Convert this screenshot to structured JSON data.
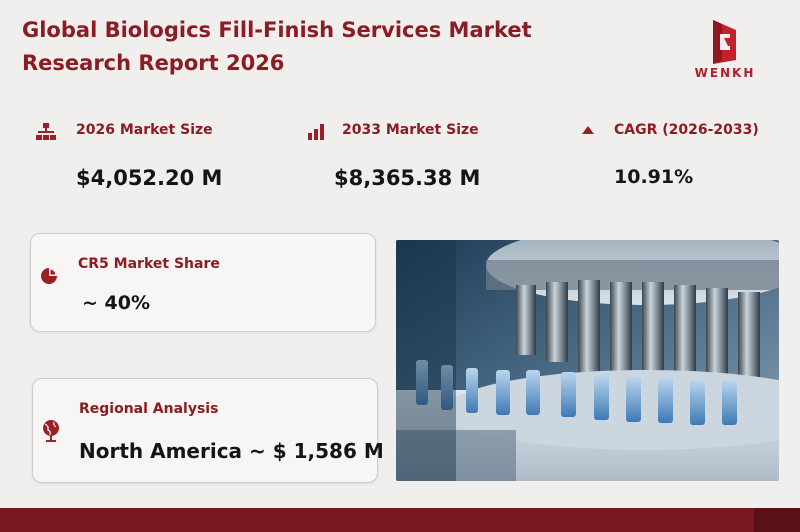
{
  "header": {
    "title_line1": "Global Biologics Fill-Finish Services Market",
    "title_line2": "Research Report 2026",
    "logo_text": "WENKH"
  },
  "metrics": [
    {
      "label": "2026 Market Size",
      "value": "$4,052.20  M",
      "icon": "org-chart-icon"
    },
    {
      "label": "2033 Market Size",
      "value": "$8,365.38  M",
      "icon": "bar-chart-icon"
    },
    {
      "label": "CAGR (2026-2033)",
      "value": "10.91%",
      "icon": "triangle-up-icon"
    }
  ],
  "cards": {
    "cr5": {
      "label": "CR5 Market Share",
      "value": "~ 40%",
      "icon": "pie-chart-icon"
    },
    "regional": {
      "label": "Regional Analysis",
      "value": "North America ~ $ 1,586 M",
      "icon": "globe-icon"
    }
  },
  "image": {
    "subject": "vial-filling-machine-photo"
  },
  "colors": {
    "accent": "#8a1c22",
    "footer": "#7a1a20",
    "background": "#f1efee"
  }
}
